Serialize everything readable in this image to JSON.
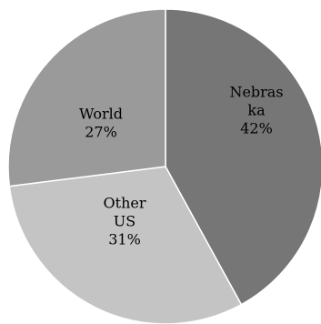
{
  "chart_data": {
    "type": "pie",
    "title": "",
    "slices": [
      {
        "key": "nebraska",
        "label_lines": [
          "Nebras",
          "ka"
        ],
        "percent_label": "42%",
        "value": 42,
        "color": "#767676"
      },
      {
        "key": "other_us",
        "label_lines": [
          "Other",
          "US"
        ],
        "percent_label": "31%",
        "value": 31,
        "color": "#c4c4c4"
      },
      {
        "key": "world",
        "label_lines": [
          "World"
        ],
        "percent_label": "27%",
        "value": 27,
        "color": "#9a9a9a"
      }
    ],
    "start_angle_deg": 0,
    "direction": "clockwise",
    "legend": "none"
  }
}
